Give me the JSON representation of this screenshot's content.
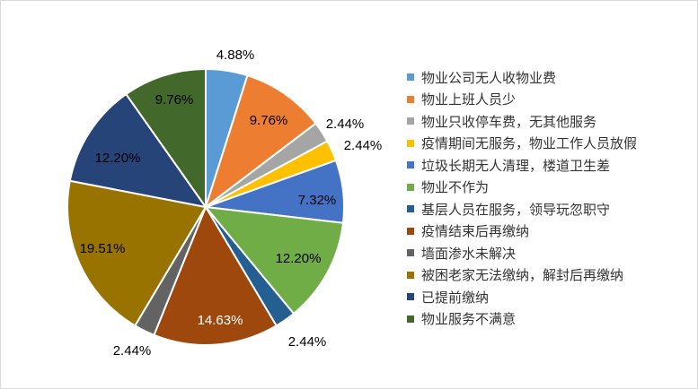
{
  "chart_data": {
    "type": "pie",
    "title": "",
    "legend_position": "right",
    "slices": [
      {
        "label": "物业公司无人收物业费",
        "value": 4.88,
        "display": "4.88%",
        "color": "#5b9bd5"
      },
      {
        "label": "物业上班人员少",
        "value": 9.76,
        "display": "9.76%",
        "color": "#ed7d31"
      },
      {
        "label": "物业只收停车费，无其他服务",
        "value": 2.44,
        "display": "2.44%",
        "color": "#a5a5a5"
      },
      {
        "label": "疫情期间无服务，物业工作人员放假",
        "value": 2.44,
        "display": "2.44%",
        "color": "#ffc000"
      },
      {
        "label": "垃圾长期无人清理，楼道卫生差",
        "value": 7.32,
        "display": "7.32%",
        "color": "#4472c4"
      },
      {
        "label": "物业不作为",
        "value": 12.2,
        "display": "12.20%",
        "color": "#70ad47"
      },
      {
        "label": "基层人员在服务，领导玩忽职守",
        "value": 2.44,
        "display": "2.44%",
        "color": "#255e91"
      },
      {
        "label": "疫情结束后再缴纳",
        "value": 14.63,
        "display": "14.63%",
        "color": "#9e480e"
      },
      {
        "label": "墙面渗水未解决",
        "value": 2.44,
        "display": "2.44%",
        "color": "#636363"
      },
      {
        "label": "被困老家无法缴纳，解封后再缴纳",
        "value": 19.51,
        "display": "19.51%",
        "color": "#997300"
      },
      {
        "label": "已提前缴纳",
        "value": 12.2,
        "display": "12.20%",
        "color": "#264478"
      },
      {
        "label": "物业服务不满意",
        "value": 9.76,
        "display": "9.76%",
        "color": "#43682b"
      }
    ]
  }
}
